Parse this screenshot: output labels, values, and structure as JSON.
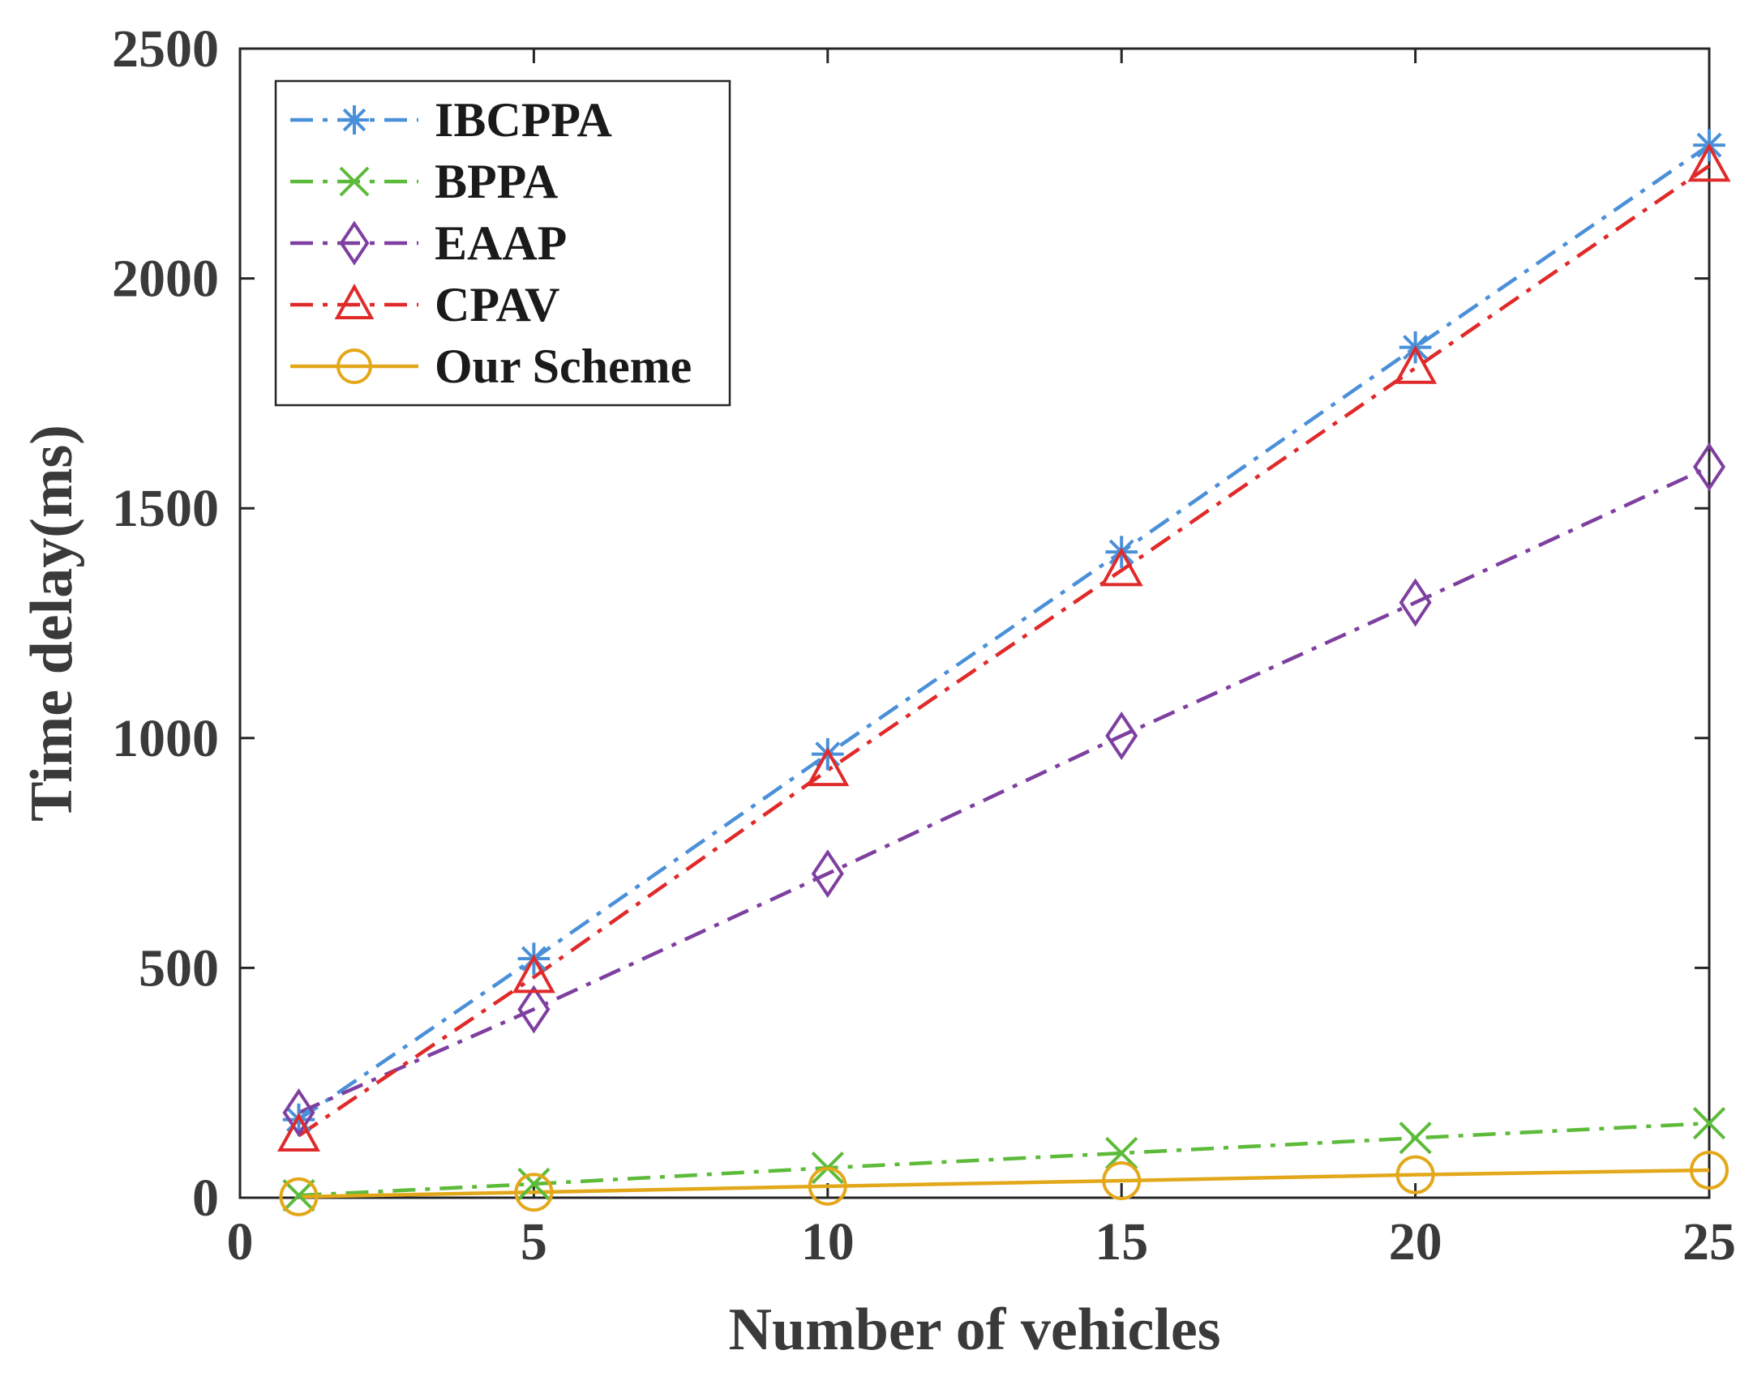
{
  "chart_data": {
    "type": "line",
    "title": "",
    "xlabel": "Number of vehicles",
    "ylabel": "Time delay(ms)",
    "xlim": [
      0,
      25
    ],
    "ylim": [
      0,
      2500
    ],
    "xticks": [
      0,
      5,
      10,
      15,
      20,
      25
    ],
    "yticks": [
      0,
      500,
      1000,
      1500,
      2000,
      2500
    ],
    "xtick_labels": [
      "0",
      "5",
      "10",
      "15",
      "20",
      "25"
    ],
    "ytick_labels": [
      "0",
      "500",
      "1000",
      "1500",
      "2000",
      "2500"
    ],
    "grid": false,
    "legend_position": "top-left",
    "x": [
      1,
      5,
      10,
      15,
      20,
      25
    ],
    "series": [
      {
        "name": "IBCPPA",
        "values": [
          170,
          520,
          965,
          1405,
          1850,
          2290
        ],
        "color": "#4a90d9",
        "marker": "asterisk",
        "line": "dashdot"
      },
      {
        "name": "BPPA",
        "values": [
          5,
          30,
          65,
          97,
          130,
          162
        ],
        "color": "#5dbb3a",
        "marker": "x",
        "line": "dashdot"
      },
      {
        "name": "EAAP",
        "values": [
          185,
          410,
          705,
          1005,
          1295,
          1590
        ],
        "color": "#7e3fa0",
        "marker": "diamond",
        "line": "dashdot"
      },
      {
        "name": "CPAV",
        "values": [
          135,
          480,
          930,
          1365,
          1805,
          2245
        ],
        "color": "#e02a2a",
        "marker": "triangle",
        "line": "dashdot"
      },
      {
        "name": "Our Scheme",
        "values": [
          2,
          12,
          25,
          37,
          50,
          60
        ],
        "color": "#e3a81a",
        "marker": "circle",
        "line": "solid"
      }
    ]
  }
}
